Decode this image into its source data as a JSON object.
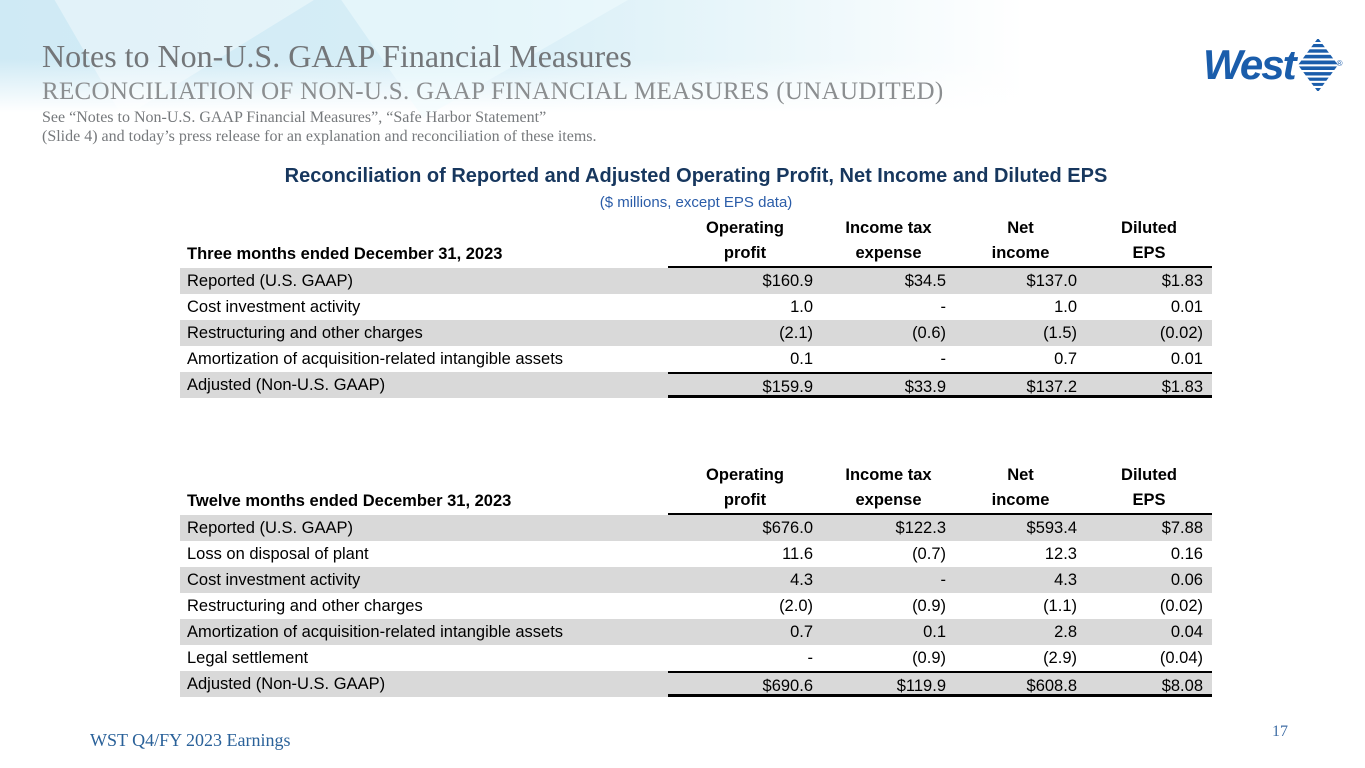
{
  "slide": {
    "title": "Notes to Non-U.S. GAAP Financial Measures",
    "subtitle": "RECONCILIATION OF NON-U.S. GAAP FINANCIAL MEASURES (UNAUDITED)",
    "notes": [
      "See “Notes to Non-U.S. GAAP Financial Measures”, “Safe Harbor Statement”",
      "(Slide 4) and today’s press release for an explanation and reconciliation of these items."
    ],
    "footer": "WST Q4/FY 2023 Earnings",
    "page_number": "17",
    "logo_text": "West",
    "logo_icon": "west-diamond-icon"
  },
  "colors": {
    "brand_blue": "#1a5dab",
    "title_navy": "#17375e",
    "subtitle_blue": "#2a5ca8",
    "heading_grey": "#737679",
    "row_shade": "#d9d9d9",
    "footer_blue": "#2a6199"
  },
  "table_title": "Reconciliation of Reported and Adjusted Operating Profit, Net Income and Diluted EPS",
  "table_units": "($ millions, except EPS data)",
  "columns": [
    {
      "line1": "Operating",
      "line2": "profit"
    },
    {
      "line1": "Income tax",
      "line2": "expense"
    },
    {
      "line1": "Net",
      "line2": "income"
    },
    {
      "line1": "Diluted",
      "line2": "EPS"
    }
  ],
  "tables": [
    {
      "period_label": "Three months ended December 31, 2023",
      "rows": [
        {
          "label": "Reported (U.S. GAAP)",
          "values": [
            "$160.9",
            "$34.5",
            "$137.0",
            "$1.83"
          ],
          "shaded": true
        },
        {
          "label": "Cost investment activity",
          "values": [
            "1.0",
            "-",
            "1.0",
            "0.01"
          ],
          "shaded": false
        },
        {
          "label": "Restructuring and other charges",
          "values": [
            "(2.1)",
            "(0.6)",
            "(1.5)",
            "(0.02)"
          ],
          "shaded": true
        },
        {
          "label": "Amortization of acquisition-related intangible assets",
          "values": [
            "0.1",
            "-",
            "0.7",
            "0.01"
          ],
          "shaded": false
        },
        {
          "label": "Adjusted (Non-U.S. GAAP)",
          "values": [
            "$159.9",
            "$33.9",
            "$137.2",
            "$1.83"
          ],
          "shaded": true,
          "total": true
        }
      ]
    },
    {
      "period_label": "Twelve months ended December 31, 2023",
      "rows": [
        {
          "label": "Reported (U.S. GAAP)",
          "values": [
            "$676.0",
            "$122.3",
            "$593.4",
            "$7.88"
          ],
          "shaded": true
        },
        {
          "label": "Loss on disposal of plant",
          "values": [
            "11.6",
            "(0.7)",
            "12.3",
            "0.16"
          ],
          "shaded": false
        },
        {
          "label": "Cost investment activity",
          "values": [
            "4.3",
            "-",
            "4.3",
            "0.06"
          ],
          "shaded": true
        },
        {
          "label": "Restructuring and other charges",
          "values": [
            "(2.0)",
            "(0.9)",
            "(1.1)",
            "(0.02)"
          ],
          "shaded": false
        },
        {
          "label": "Amortization of acquisition-related intangible assets",
          "values": [
            "0.7",
            "0.1",
            "2.8",
            "0.04"
          ],
          "shaded": true
        },
        {
          "label": "Legal settlement",
          "values": [
            "-",
            "(0.9)",
            "(2.9)",
            "(0.04)"
          ],
          "shaded": false
        },
        {
          "label": "Adjusted (Non-U.S. GAAP)",
          "values": [
            "$690.6",
            "$119.9",
            "$608.8",
            "$8.08"
          ],
          "shaded": true,
          "total": true
        }
      ]
    }
  ]
}
